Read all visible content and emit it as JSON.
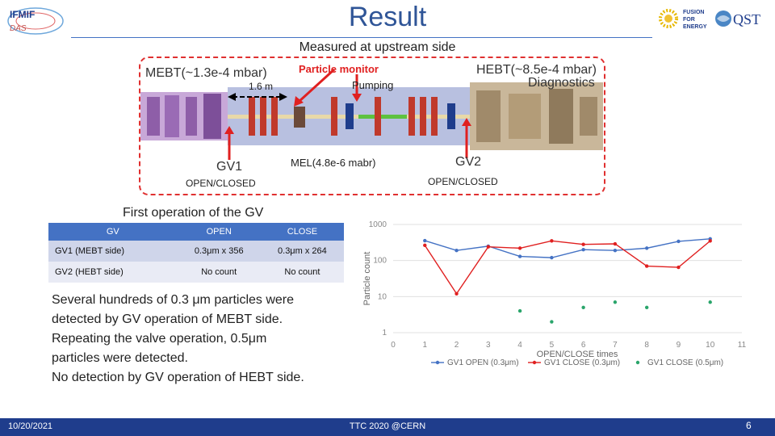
{
  "header": {
    "title": "Result",
    "subtitle": "Measured at upstream side",
    "logo_left_text": "IFMIF",
    "logo_right_fusion": "FUSION",
    "logo_right_for": "FOR",
    "logo_right_energy": "ENERGY",
    "logo_right_qst": "QST"
  },
  "diagram": {
    "mebt": "MEBT(~1.3e-4 mbar)",
    "hebt": "HEBT(~8.5e-4 mbar)",
    "diagnostics": "Diagnostics",
    "distance": "1.6 m",
    "particle_monitor": "Particle monitor",
    "pumping": "Pumping",
    "mel": "MEL(4.8e-6 mabr)",
    "gv1": "GV1",
    "gv2": "GV2",
    "gv1_state": "OPEN/CLOSED",
    "gv2_state": "OPEN/CLOSED"
  },
  "table": {
    "caption": "First operation of the GV",
    "headers": [
      "GV",
      "OPEN",
      "CLOSE"
    ],
    "rows": [
      [
        "GV1 (MEBT side)",
        "0.3μm x 356",
        "0.3μm x 264"
      ],
      [
        "GV2 (HEBT side)",
        "No count",
        "No count"
      ]
    ]
  },
  "body": {
    "lines": [
      "Several hundreds of 0.3 μm particles were",
      "detected by GV operation of MEBT side.",
      "Repeating the valve operation, 0.5μm",
      "particles were detected.",
      "No detection by GV operation of HEBT side."
    ]
  },
  "chart_data": {
    "type": "line",
    "xlabel": "OPEN/CLOSE times",
    "ylabel": "Particle count",
    "yscale": "log",
    "ylim": [
      1,
      1000
    ],
    "xlim": [
      0,
      11
    ],
    "x_ticks": [
      "0",
      "1",
      "2",
      "3",
      "4",
      "5",
      "6",
      "7",
      "8",
      "9",
      "10",
      "11"
    ],
    "y_ticks": [
      "1000",
      "100",
      "10",
      "1"
    ],
    "series": [
      {
        "name": "GV1 OPEN (0.3μm)",
        "color": "#4472c4",
        "style": "line",
        "x": [
          1,
          2,
          3,
          4,
          5,
          6,
          7,
          8,
          9,
          10
        ],
        "y": [
          356,
          190,
          250,
          130,
          120,
          200,
          190,
          220,
          340,
          400
        ]
      },
      {
        "name": "GV1 CLOSE (0.3μm)",
        "color": "#e02020",
        "style": "line",
        "x": [
          1,
          2,
          3,
          4,
          5,
          6,
          7,
          8,
          9,
          10
        ],
        "y": [
          264,
          12,
          240,
          220,
          350,
          280,
          290,
          70,
          65,
          350
        ]
      },
      {
        "name": "GV1 CLOSE (0.5μm)",
        "color": "#2aa56b",
        "style": "points",
        "x": [
          4,
          5,
          6,
          7,
          8,
          10
        ],
        "y": [
          4,
          2,
          5,
          7,
          5,
          7
        ]
      }
    ]
  },
  "footer": {
    "date": "10/20/2021",
    "center": "TTC 2020 @CERN",
    "page": "6"
  }
}
